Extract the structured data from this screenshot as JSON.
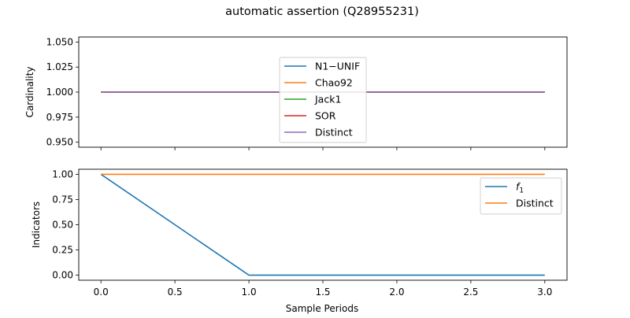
{
  "figure": {
    "title": "automatic assertion (Q28955231)",
    "xlabel": "Sample Periods"
  },
  "chart_data": [
    {
      "type": "line",
      "title": "",
      "ylabel": "Cardinality",
      "xlabel": "",
      "xlim": [
        -0.15,
        3.15
      ],
      "ylim": [
        0.945,
        1.055
      ],
      "xticks": [
        0.0,
        0.5,
        1.0,
        1.5,
        2.0,
        2.5,
        3.0
      ],
      "yticks": [
        0.95,
        0.975,
        1.0,
        1.025,
        1.05
      ],
      "ytick_labels": [
        "0.950",
        "0.975",
        "1.000",
        "1.025",
        "1.050"
      ],
      "show_xtick_labels": false,
      "grid": false,
      "legend_position": "upper-center",
      "series": [
        {
          "name": "N1−UNIF",
          "color": "#1f77b4",
          "x": [
            0,
            1,
            2,
            3
          ],
          "y": [
            1,
            1,
            1,
            1
          ]
        },
        {
          "name": "Chao92",
          "color": "#ff7f0e",
          "x": [
            0,
            1,
            2,
            3
          ],
          "y": [
            1,
            1,
            1,
            1
          ]
        },
        {
          "name": "Jack1",
          "color": "#2ca02c",
          "x": [
            0,
            1,
            2,
            3
          ],
          "y": [
            1,
            1,
            1,
            1
          ]
        },
        {
          "name": "SOR",
          "color": "#d62728",
          "x": [
            0,
            1,
            2,
            3
          ],
          "y": [
            1,
            1,
            1,
            1
          ]
        },
        {
          "name": "Distinct",
          "color": "#9467bd",
          "x": [
            0,
            1,
            2,
            3
          ],
          "y": [
            1,
            1,
            1,
            1
          ]
        }
      ]
    },
    {
      "type": "line",
      "title": "",
      "ylabel": "Indicators",
      "xlabel": "Sample Periods",
      "xlim": [
        -0.15,
        3.15
      ],
      "ylim": [
        -0.05,
        1.05
      ],
      "xticks": [
        0.0,
        0.5,
        1.0,
        1.5,
        2.0,
        2.5,
        3.0
      ],
      "xtick_labels": [
        "0.0",
        "0.5",
        "1.0",
        "1.5",
        "2.0",
        "2.5",
        "3.0"
      ],
      "yticks": [
        0.0,
        0.25,
        0.5,
        0.75,
        1.0
      ],
      "ytick_labels": [
        "0.00",
        "0.25",
        "0.50",
        "0.75",
        "1.00"
      ],
      "show_xtick_labels": true,
      "grid": false,
      "legend_position": "top-right",
      "series": [
        {
          "name": "f",
          "name_subscript": "1",
          "color": "#1f77b4",
          "x": [
            0,
            1,
            2,
            3
          ],
          "y": [
            1,
            0,
            0,
            0
          ]
        },
        {
          "name": "Distinct",
          "color": "#ff7f0e",
          "x": [
            0,
            1,
            2,
            3
          ],
          "y": [
            1,
            1,
            1,
            1
          ]
        }
      ]
    }
  ]
}
